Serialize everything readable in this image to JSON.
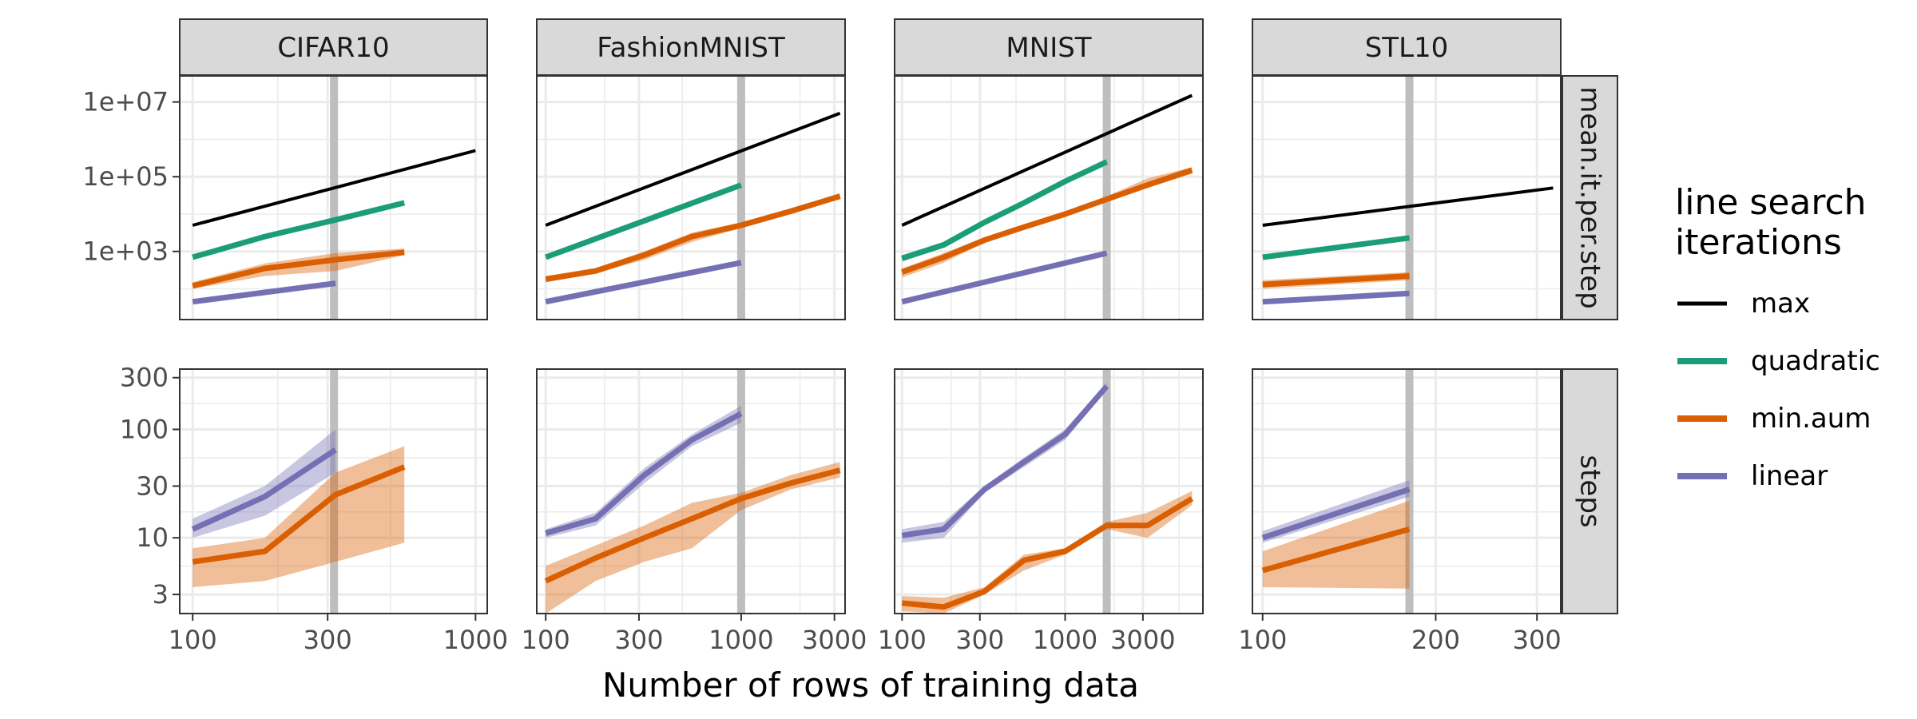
{
  "chart_data": {
    "type": "line",
    "xlabel": "Number of rows of training data",
    "xscale": "log",
    "facet_columns": [
      "CIFAR10",
      "FashionMNIST",
      "MNIST",
      "STL10"
    ],
    "facet_rows": [
      "mean.it.per.step",
      "steps"
    ],
    "legend": {
      "title_lines": [
        "line search",
        "iterations"
      ],
      "position": "right",
      "entries": [
        {
          "name": "max",
          "color": "#000000"
        },
        {
          "name": "quadratic",
          "color": "#1B9E77"
        },
        {
          "name": "min.aum",
          "color": "#D95F02"
        },
        {
          "name": "linear",
          "color": "#7570B3"
        }
      ]
    },
    "row_axes": {
      "mean.it.per.step": {
        "yscale": "log",
        "ylim": [
          15,
          50000000
        ],
        "ticks": [
          1000,
          100000,
          10000000
        ],
        "tick_labels": [
          "1e+03",
          "1e+05",
          "1e+07"
        ]
      },
      "steps": {
        "yscale": "log",
        "ylim": [
          2,
          360
        ],
        "ticks": [
          3,
          10,
          30,
          100,
          300
        ],
        "tick_labels": [
          "3",
          "10",
          "30",
          "100",
          "300"
        ]
      }
    },
    "panels": [
      {
        "column": "CIFAR10",
        "xlim": [
          90,
          1100
        ],
        "xticks": [
          100,
          300,
          1000
        ],
        "xtick_labels": [
          "100",
          "300",
          "1000"
        ],
        "vline": 316,
        "mean_it_per_step": [
          {
            "name": "max",
            "x": [
              100,
              1000
            ],
            "y": [
              5000,
              500000
            ]
          },
          {
            "name": "quadratic",
            "x": [
              100,
              180,
              320,
              560
            ],
            "y": [
              700,
              2500,
              7000,
              20000
            ]
          },
          {
            "name": "min.aum",
            "x": [
              100,
              180,
              320,
              560
            ],
            "y": [
              120,
              350,
              600,
              950
            ],
            "lower": [
              100,
              220,
              300,
              800
            ],
            "upper": [
              150,
              480,
              900,
              1200
            ]
          },
          {
            "name": "linear",
            "x": [
              100,
              180,
              320
            ],
            "y": [
              45,
              80,
              140
            ]
          }
        ],
        "steps": [
          {
            "name": "min.aum",
            "x": [
              100,
              180,
              320,
              560
            ],
            "y": [
              6,
              7.5,
              25,
              45
            ],
            "lower": [
              3.5,
              4,
              6,
              9
            ],
            "upper": [
              8,
              10,
              40,
              70
            ]
          },
          {
            "name": "linear",
            "x": [
              100,
              180,
              320
            ],
            "y": [
              12,
              24,
              65
            ],
            "lower": [
              10,
              16,
              40
            ],
            "upper": [
              15,
              30,
              100
            ]
          }
        ]
      },
      {
        "column": "FashionMNIST",
        "xlim": [
          90,
          3400
        ],
        "xticks": [
          100,
          300,
          1000,
          3000
        ],
        "xtick_labels": [
          "100",
          "300",
          "1000",
          "3000"
        ],
        "vline": 1000,
        "mean_it_per_step": [
          {
            "name": "max",
            "x": [
              100,
              3200
            ],
            "y": [
              5000,
              5000000
            ]
          },
          {
            "name": "quadratic",
            "x": [
              100,
              1000
            ],
            "y": [
              700,
              60000
            ]
          },
          {
            "name": "min.aum",
            "x": [
              100,
              180,
              320,
              560,
              1000,
              1800,
              3200
            ],
            "y": [
              180,
              300,
              800,
              2500,
              5000,
              12000,
              30000
            ],
            "lower": [
              150,
              260,
              600,
              1800,
              4200,
              10000,
              26000
            ],
            "upper": [
              220,
              360,
              1000,
              3200,
              6000,
              14000,
              35000
            ]
          },
          {
            "name": "linear",
            "x": [
              100,
              1000
            ],
            "y": [
              45,
              500
            ]
          }
        ],
        "steps": [
          {
            "name": "min.aum",
            "x": [
              100,
              180,
              320,
              560,
              1000,
              1800,
              3200
            ],
            "y": [
              4,
              6.5,
              10,
              15,
              23,
              32,
              42
            ],
            "lower": [
              2,
              4,
              6,
              8,
              18,
              28,
              36
            ],
            "upper": [
              5.5,
              8.5,
              13,
              21,
              26,
              38,
              50
            ]
          },
          {
            "name": "linear",
            "x": [
              100,
              180,
              320,
              560,
              1000
            ],
            "y": [
              11,
              15,
              38,
              80,
              140
            ],
            "lower": [
              10,
              13,
              32,
              70,
              115
            ],
            "upper": [
              12,
              17,
              44,
              90,
              165
            ]
          }
        ]
      },
      {
        "column": "MNIST",
        "xlim": [
          90,
          7000
        ],
        "xticks": [
          100,
          300,
          1000,
          3000
        ],
        "xtick_labels": [
          "100",
          "300",
          "1000",
          "3000"
        ],
        "vline": 1800,
        "mean_it_per_step": [
          {
            "name": "max",
            "x": [
              100,
              6000
            ],
            "y": [
              5000,
              15000000
            ]
          },
          {
            "name": "quadratic",
            "x": [
              100,
              180,
              320,
              560,
              1000,
              1800
            ],
            "y": [
              650,
              1500,
              6000,
              20000,
              75000,
              250000
            ],
            "lower": [
              550,
              1300,
              5200,
              17000,
              65000,
              220000
            ],
            "upper": [
              800,
              1800,
              7000,
              23000,
              85000,
              290000
            ]
          },
          {
            "name": "min.aum",
            "x": [
              100,
              180,
              320,
              560,
              1000,
              1800,
              3200,
              6000
            ],
            "y": [
              280,
              700,
              2000,
              4500,
              10000,
              25000,
              60000,
              150000
            ],
            "lower": [
              200,
              500,
              1700,
              3800,
              8500,
              22000,
              50000,
              120000
            ],
            "upper": [
              350,
              900,
              2400,
              5300,
              12000,
              30000,
              90000,
              180000
            ]
          },
          {
            "name": "linear",
            "x": [
              100,
              1800
            ],
            "y": [
              45,
              900
            ]
          }
        ],
        "steps": [
          {
            "name": "min.aum",
            "x": [
              100,
              180,
              320,
              560,
              1000,
              1800,
              3200,
              6000
            ],
            "y": [
              2.5,
              2.3,
              3.2,
              6.2,
              7.5,
              13,
              13,
              23
            ],
            "lower": [
              2.1,
              2.0,
              3.0,
              5.0,
              7.0,
              12,
              10,
              20
            ],
            "upper": [
              2.9,
              2.8,
              3.5,
              7.0,
              8.0,
              14,
              17,
              27
            ]
          },
          {
            "name": "linear",
            "x": [
              100,
              180,
              320,
              560,
              1000,
              1800
            ],
            "y": [
              10.5,
              12,
              28,
              50,
              90,
              250
            ],
            "lower": [
              9,
              10,
              26,
              45,
              80,
              230
            ],
            "upper": [
              12,
              14,
              30,
              55,
              100,
              270
            ]
          }
        ]
      },
      {
        "column": "STL10",
        "xlim": [
          96,
          330
        ],
        "xticks": [
          100,
          200,
          300
        ],
        "xtick_labels": [
          "100",
          "200",
          "300"
        ],
        "vline": 180,
        "mean_it_per_step": [
          {
            "name": "max",
            "x": [
              100,
              320
            ],
            "y": [
              5000,
              50000
            ]
          },
          {
            "name": "quadratic",
            "x": [
              100,
              180
            ],
            "y": [
              700,
              2300
            ]
          },
          {
            "name": "min.aum",
            "x": [
              100,
              180
            ],
            "y": [
              130,
              220
            ],
            "lower": [
              100,
              170
            ],
            "upper": [
              170,
              280
            ]
          },
          {
            "name": "linear",
            "x": [
              100,
              180
            ],
            "y": [
              45,
              75
            ]
          }
        ],
        "steps": [
          {
            "name": "min.aum",
            "x": [
              100,
              180
            ],
            "y": [
              5,
              12
            ],
            "lower": [
              3.5,
              3.4
            ],
            "upper": [
              7.5,
              22
            ]
          },
          {
            "name": "linear",
            "x": [
              100,
              180
            ],
            "y": [
              10,
              28
            ],
            "lower": [
              9,
              24
            ],
            "upper": [
              11.5,
              34
            ]
          }
        ]
      }
    ]
  }
}
